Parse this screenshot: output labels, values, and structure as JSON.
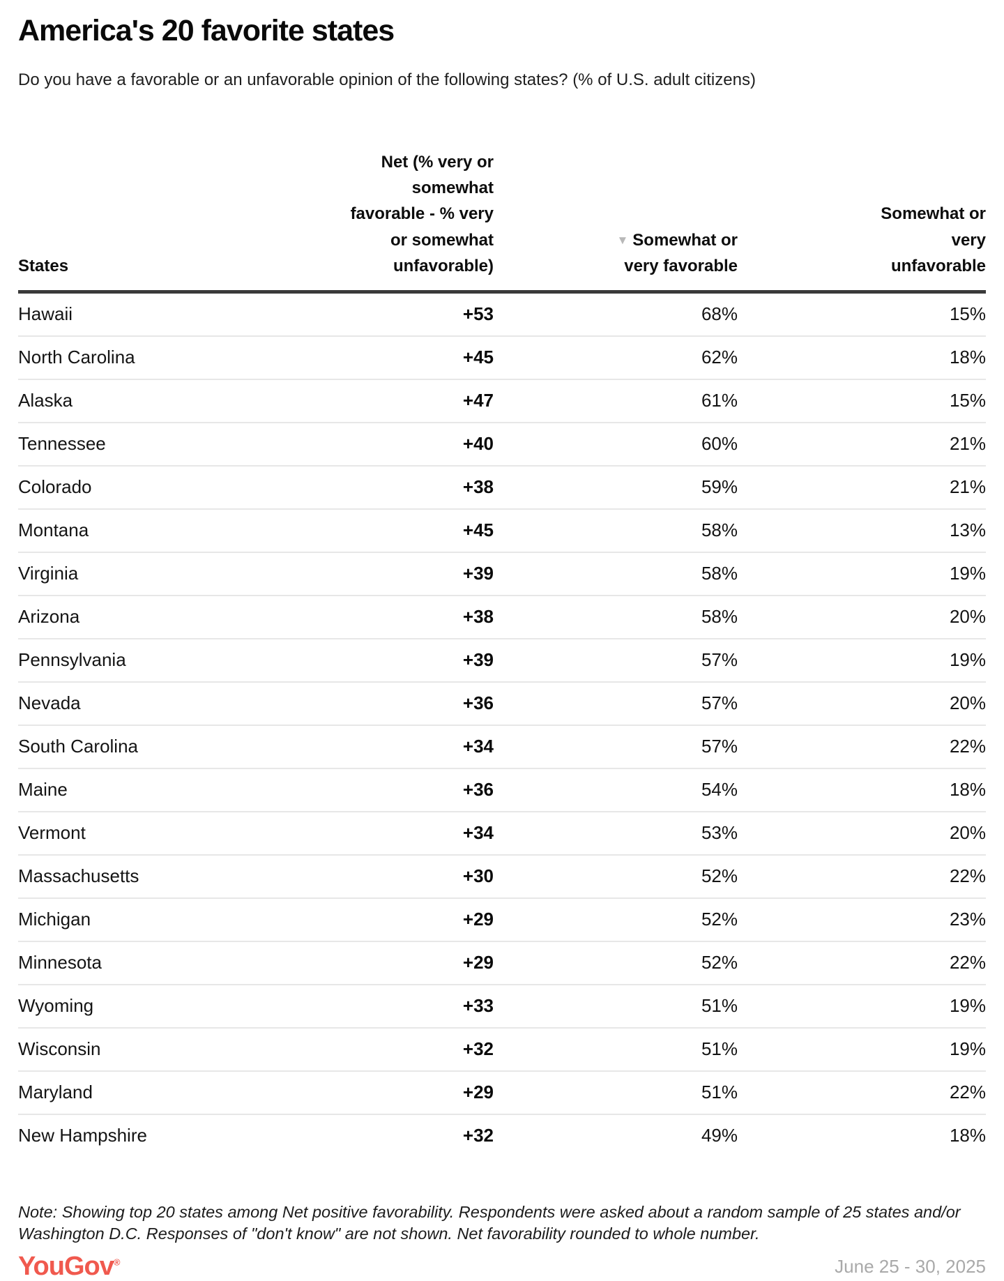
{
  "page": {
    "title": "America's 20 favorite states",
    "subtitle": "Do you have a favorable or an unfavorable opinion of the following states? (% of U.S. adult citizens)"
  },
  "table": {
    "columns": {
      "states": "States",
      "net": "Net (% very or somewhat favorable - % very or somewhat unfavorable)",
      "favorable": "Somewhat or very favorable",
      "unfavorable": "Somewhat or very unfavorable"
    },
    "sort_icon_glyph": "▼",
    "rows": [
      {
        "state": "Hawaii",
        "net": "+53",
        "favorable": "68%",
        "unfavorable": "15%"
      },
      {
        "state": "North Carolina",
        "net": "+45",
        "favorable": "62%",
        "unfavorable": "18%"
      },
      {
        "state": "Alaska",
        "net": "+47",
        "favorable": "61%",
        "unfavorable": "15%"
      },
      {
        "state": "Tennessee",
        "net": "+40",
        "favorable": "60%",
        "unfavorable": "21%"
      },
      {
        "state": "Colorado",
        "net": "+38",
        "favorable": "59%",
        "unfavorable": "21%"
      },
      {
        "state": "Montana",
        "net": "+45",
        "favorable": "58%",
        "unfavorable": "13%"
      },
      {
        "state": "Virginia",
        "net": "+39",
        "favorable": "58%",
        "unfavorable": "19%"
      },
      {
        "state": "Arizona",
        "net": "+38",
        "favorable": "58%",
        "unfavorable": "20%"
      },
      {
        "state": "Pennsylvania",
        "net": "+39",
        "favorable": "57%",
        "unfavorable": "19%"
      },
      {
        "state": "Nevada",
        "net": "+36",
        "favorable": "57%",
        "unfavorable": "20%"
      },
      {
        "state": "South Carolina",
        "net": "+34",
        "favorable": "57%",
        "unfavorable": "22%"
      },
      {
        "state": "Maine",
        "net": "+36",
        "favorable": "54%",
        "unfavorable": "18%"
      },
      {
        "state": "Vermont",
        "net": "+34",
        "favorable": "53%",
        "unfavorable": "20%"
      },
      {
        "state": "Massachusetts",
        "net": "+30",
        "favorable": "52%",
        "unfavorable": "22%"
      },
      {
        "state": "Michigan",
        "net": "+29",
        "favorable": "52%",
        "unfavorable": "23%"
      },
      {
        "state": "Minnesota",
        "net": "+29",
        "favorable": "52%",
        "unfavorable": "22%"
      },
      {
        "state": "Wyoming",
        "net": "+33",
        "favorable": "51%",
        "unfavorable": "19%"
      },
      {
        "state": "Wisconsin",
        "net": "+32",
        "favorable": "51%",
        "unfavorable": "19%"
      },
      {
        "state": "Maryland",
        "net": "+29",
        "favorable": "51%",
        "unfavorable": "22%"
      },
      {
        "state": "New Hampshire",
        "net": "+32",
        "favorable": "49%",
        "unfavorable": "18%"
      }
    ]
  },
  "note": "Note: Showing top 20 states among Net positive favorability. Respondents were asked about a random sample of 25 states and/or Washington D.C. Responses of \"don't know\" are not shown. Net favorability rounded to whole number.",
  "footer": {
    "logo": "YouGov",
    "registered_mark": "®",
    "date_range": "June 25 - 30, 2025"
  },
  "colors": {
    "brand": "#F0594E",
    "sort_icon": "#b8b8b8",
    "date": "#a9a9a9",
    "header_rule": "#3a3a3a",
    "row_divider": "#e7e7e7"
  },
  "chart_data": {
    "type": "table",
    "title": "America's 20 favorite states",
    "subtitle": "Do you have a favorable or an unfavorable opinion of the following states? (% of U.S. adult citizens)",
    "columns": [
      "States",
      "Net (% very or somewhat favorable - % very or somewhat unfavorable)",
      "Somewhat or very favorable",
      "Somewhat or very unfavorable"
    ],
    "categories": [
      "Hawaii",
      "North Carolina",
      "Alaska",
      "Tennessee",
      "Colorado",
      "Montana",
      "Virginia",
      "Arizona",
      "Pennsylvania",
      "Nevada",
      "South Carolina",
      "Maine",
      "Vermont",
      "Massachusetts",
      "Michigan",
      "Minnesota",
      "Wyoming",
      "Wisconsin",
      "Maryland",
      "New Hampshire"
    ],
    "series": [
      {
        "name": "Net favorability",
        "values": [
          53,
          45,
          47,
          40,
          38,
          45,
          39,
          38,
          39,
          36,
          34,
          36,
          34,
          30,
          29,
          29,
          33,
          32,
          29,
          32
        ]
      },
      {
        "name": "Somewhat or very favorable (%)",
        "values": [
          68,
          62,
          61,
          60,
          59,
          58,
          58,
          58,
          57,
          57,
          57,
          54,
          53,
          52,
          52,
          52,
          51,
          51,
          51,
          49
        ]
      },
      {
        "name": "Somewhat or very unfavorable (%)",
        "values": [
          15,
          18,
          15,
          21,
          21,
          13,
          19,
          20,
          19,
          20,
          22,
          18,
          20,
          22,
          23,
          22,
          19,
          19,
          22,
          18
        ]
      }
    ],
    "sort": {
      "column": "Somewhat or very favorable",
      "direction": "descending"
    },
    "source": "YouGov",
    "date_label": "June 25 - 30, 2025"
  }
}
